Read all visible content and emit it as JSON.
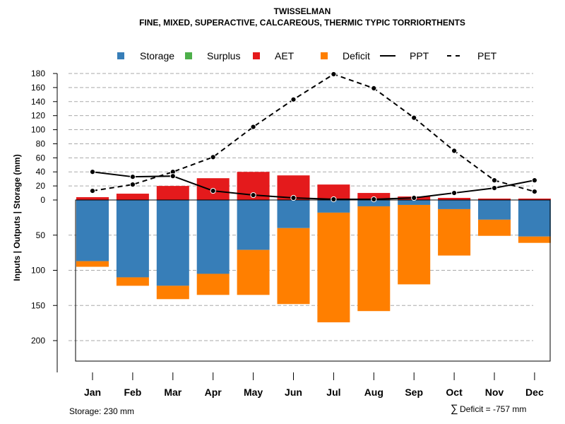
{
  "chart_data": {
    "type": "bar",
    "title": "TWISSELMAN",
    "subtitle": "FINE, MIXED, SUPERACTIVE, CALCAREOUS, THERMIC TYPIC TORRIORTHENTS",
    "ylabel": "Inputs | Outputs | Storage    (mm)",
    "categories": [
      "Jan",
      "Feb",
      "Mar",
      "Apr",
      "May",
      "Jun",
      "Jul",
      "Aug",
      "Sep",
      "Oct",
      "Nov",
      "Dec"
    ],
    "upper_ticks": [
      "180",
      "160",
      "140",
      "120",
      "100",
      "80",
      "60",
      "40",
      "20",
      "0"
    ],
    "lower_ticks": [
      "50",
      "100",
      "150",
      "200"
    ],
    "ylim_upper": [
      0,
      180
    ],
    "ylim_lower": [
      0,
      230
    ],
    "legend": [
      {
        "label": "Storage",
        "kind": "box",
        "color": "#377EB8"
      },
      {
        "label": "Surplus",
        "kind": "box",
        "color": "#4DAF4A"
      },
      {
        "label": "AET",
        "kind": "box",
        "color": "#E41A1C"
      },
      {
        "label": "Deficit",
        "kind": "box",
        "color": "#FF7F00"
      },
      {
        "label": "PPT",
        "kind": "solid",
        "color": "#000000"
      },
      {
        "label": "PET",
        "kind": "dashed",
        "color": "#000000"
      }
    ],
    "series": [
      {
        "name": "AET",
        "values": [
          4,
          9,
          20,
          31,
          40,
          35,
          22,
          10,
          5,
          3,
          2,
          2
        ]
      },
      {
        "name": "Surplus",
        "values": [
          0,
          0,
          0,
          0,
          0,
          0,
          0,
          0,
          0,
          0,
          0,
          0
        ]
      },
      {
        "name": "Storage",
        "values": [
          87,
          110,
          122,
          105,
          71,
          40,
          18,
          9,
          7,
          13,
          28,
          52
        ]
      },
      {
        "name": "Deficit",
        "values": [
          8,
          12,
          19,
          30,
          64,
          108,
          156,
          149,
          113,
          66,
          23,
          9
        ]
      },
      {
        "name": "PPT",
        "values": [
          40,
          33,
          34,
          13,
          7,
          3,
          1,
          1,
          3,
          10,
          17,
          28
        ]
      },
      {
        "name": "PET",
        "values": [
          13,
          22,
          40,
          61,
          104,
          143,
          179,
          159,
          117,
          70,
          28,
          12
        ]
      }
    ]
  },
  "footer": {
    "storage_note": "Storage: 230 mm",
    "deficit_symbol": "∑",
    "deficit_note": "Deficit = -757 mm"
  }
}
